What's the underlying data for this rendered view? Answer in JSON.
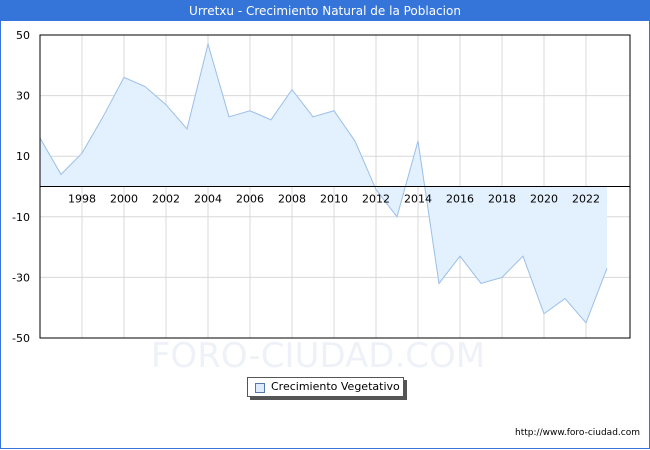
{
  "title": "Urretxu - Crecimiento Natural de la Poblacion",
  "watermark": "FORO-CIUDAD.COM",
  "footer_url": "http://www.foro-ciudad.com",
  "colors": {
    "titlebar": "#3574d8",
    "area_fill": "#e3f0fd",
    "line": "#9bbfe8",
    "grid": "#d8d8d8"
  },
  "chart_data": {
    "type": "area",
    "title": "Urretxu - Crecimiento Natural de la Poblacion",
    "xlabel": "",
    "ylabel": "",
    "ylim": [
      -50,
      50
    ],
    "y_ticks": [
      50,
      30,
      10,
      -10,
      -30,
      -50
    ],
    "x_tick_labels": [
      "1998",
      "2000",
      "2002",
      "2004",
      "2006",
      "2008",
      "2010",
      "2012",
      "2014",
      "2016",
      "2018",
      "2020",
      "2022"
    ],
    "x": [
      1996,
      1997,
      1998,
      1999,
      2000,
      2001,
      2002,
      2003,
      2004,
      2005,
      2006,
      2007,
      2008,
      2009,
      2010,
      2011,
      2012,
      2013,
      2014,
      2015,
      2016,
      2017,
      2018,
      2019,
      2020,
      2021,
      2022,
      2023
    ],
    "series": [
      {
        "name": "Crecimiento Vegetativo",
        "values": [
          16,
          4,
          11,
          23,
          36,
          33,
          27,
          19,
          47,
          23,
          25,
          22,
          32,
          23,
          25,
          15,
          -1,
          -10,
          15,
          -32,
          -23,
          -32,
          -30,
          -23,
          -42,
          -37,
          -45,
          -27
        ]
      }
    ],
    "grid": true,
    "legend_position": "bottom-center"
  },
  "legend": {
    "label": "Crecimiento Vegetativo"
  }
}
